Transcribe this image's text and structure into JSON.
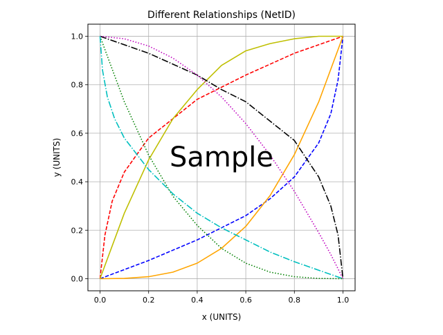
{
  "chart_data": {
    "type": "line",
    "title": "Different Relationships (NetID)",
    "xlabel": "x (UNITS)",
    "ylabel": "y (UNITS)",
    "xlim": [
      -0.05,
      1.05
    ],
    "ylim": [
      -0.05,
      1.05
    ],
    "xticks": [
      "0.0",
      "0.2",
      "0.4",
      "0.6",
      "0.8",
      "1.0"
    ],
    "yticks": [
      "0.0",
      "0.2",
      "0.4",
      "0.6",
      "0.8",
      "1.0"
    ],
    "grid": true,
    "legend": "none",
    "watermark": "Sample",
    "series": [
      {
        "color": "#0000ff",
        "style": "dashed",
        "x": [
          0,
          0.2,
          0.4,
          0.6,
          0.7,
          0.8,
          0.9,
          0.95,
          0.98,
          1.0
        ],
        "y": [
          0,
          0.075,
          0.16,
          0.26,
          0.33,
          0.42,
          0.56,
          0.68,
          0.82,
          1.0
        ]
      },
      {
        "color": "#ff0000",
        "style": "dashed",
        "x": [
          0,
          0.02,
          0.05,
          0.1,
          0.2,
          0.4,
          0.6,
          0.8,
          1.0
        ],
        "y": [
          0,
          0.18,
          0.32,
          0.44,
          0.58,
          0.74,
          0.84,
          0.93,
          1.0
        ]
      },
      {
        "color": "#ffa500",
        "style": "solid",
        "x": [
          0,
          0.1,
          0.2,
          0.3,
          0.4,
          0.5,
          0.6,
          0.7,
          0.8,
          0.9,
          1.0
        ],
        "y": [
          0,
          0.001,
          0.008,
          0.027,
          0.064,
          0.125,
          0.216,
          0.343,
          0.512,
          0.729,
          1.0
        ]
      },
      {
        "color": "#bfbf00",
        "style": "solid",
        "x": [
          0,
          0.1,
          0.2,
          0.3,
          0.4,
          0.5,
          0.6,
          0.7,
          0.8,
          0.9,
          1.0
        ],
        "y": [
          0,
          0.27,
          0.49,
          0.66,
          0.78,
          0.88,
          0.94,
          0.97,
          0.99,
          1.0,
          1.0
        ]
      },
      {
        "color": "#000000",
        "style": "dashdot",
        "x": [
          0,
          0.2,
          0.4,
          0.5,
          0.6,
          0.7,
          0.8,
          0.9,
          0.95,
          0.98,
          1.0
        ],
        "y": [
          1.0,
          0.93,
          0.84,
          0.78,
          0.73,
          0.65,
          0.57,
          0.42,
          0.3,
          0.18,
          0
        ]
      },
      {
        "color": "#bf00bf",
        "style": "dotted",
        "x": [
          0,
          0.1,
          0.2,
          0.3,
          0.4,
          0.5,
          0.6,
          0.7,
          0.8,
          0.9,
          0.95,
          1.0
        ],
        "y": [
          1.0,
          0.99,
          0.96,
          0.91,
          0.84,
          0.75,
          0.64,
          0.51,
          0.36,
          0.19,
          0.1,
          0
        ]
      },
      {
        "color": "#008000",
        "style": "dotted",
        "x": [
          0,
          0.1,
          0.2,
          0.3,
          0.4,
          0.5,
          0.6,
          0.7,
          0.8,
          0.9,
          1.0
        ],
        "y": [
          1.0,
          0.73,
          0.51,
          0.34,
          0.22,
          0.125,
          0.064,
          0.027,
          0.008,
          0.001,
          0
        ]
      },
      {
        "color": "#00bfbf",
        "style": "dashdot",
        "x": [
          0,
          0.01,
          0.03,
          0.06,
          0.1,
          0.2,
          0.3,
          0.4,
          0.5,
          0.6,
          0.7,
          0.8,
          0.9,
          1.0
        ],
        "y": [
          1.0,
          0.86,
          0.75,
          0.66,
          0.58,
          0.45,
          0.35,
          0.27,
          0.21,
          0.16,
          0.11,
          0.07,
          0.035,
          0
        ]
      }
    ]
  }
}
